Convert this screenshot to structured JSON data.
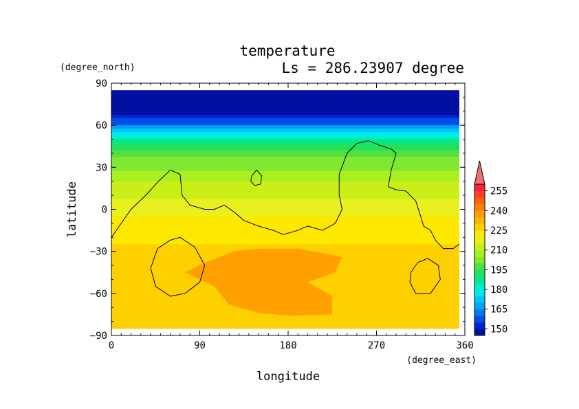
{
  "chart_data": {
    "type": "heatmap",
    "title": "temperature",
    "subtitle": "Ls = 286.23907 degree",
    "xlabel": "longitude",
    "ylabel": "latitude",
    "x_units": "(degree_east)",
    "y_units": "(degree_north)",
    "xlim": [
      0,
      360
    ],
    "ylim": [
      -90,
      90
    ],
    "data_lat_range": [
      -85,
      85
    ],
    "x_ticks": [
      0,
      90,
      180,
      270,
      360
    ],
    "y_ticks": [
      90,
      60,
      30,
      0,
      -30,
      -60,
      -90
    ],
    "x_tick_labels": [
      "0",
      "90",
      "180",
      "270",
      "360"
    ],
    "y_tick_labels": [
      "90",
      "60",
      "30",
      "0",
      "−30",
      "−60",
      "−90"
    ],
    "colorbar": {
      "levels": [
        145,
        150,
        155,
        160,
        165,
        170,
        175,
        180,
        185,
        190,
        195,
        200,
        205,
        210,
        215,
        220,
        225,
        230,
        235,
        240,
        245,
        250,
        255,
        260
      ],
      "colors": [
        "#0010a0",
        "#0022d0",
        "#0050e8",
        "#0078f0",
        "#00a0f8",
        "#00c8f8",
        "#00e8f0",
        "#00f0c0",
        "#00e890",
        "#20e060",
        "#50e040",
        "#80e830",
        "#a8f020",
        "#c8f018",
        "#e8f020",
        "#ffe800",
        "#ffd000",
        "#ffb800",
        "#ffa000",
        "#ff8000",
        "#ff6000",
        "#ff4020",
        "#ff2040"
      ],
      "tick_values": [
        150,
        165,
        180,
        195,
        210,
        225,
        240,
        255
      ],
      "tick_labels": [
        "150",
        "165",
        "180",
        "195",
        "210",
        "225",
        "240",
        "255"
      ],
      "overflow_color": "#f07070"
    },
    "temperature_profile_by_latitude": [
      {
        "lat": 85,
        "value": 146
      },
      {
        "lat": 70,
        "value": 148
      },
      {
        "lat": 62,
        "value": 157
      },
      {
        "lat": 55,
        "value": 176
      },
      {
        "lat": 45,
        "value": 193
      },
      {
        "lat": 35,
        "value": 201
      },
      {
        "lat": 25,
        "value": 207
      },
      {
        "lat": 15,
        "value": 212
      },
      {
        "lat": 5,
        "value": 216
      },
      {
        "lat": -5,
        "value": 220
      },
      {
        "lat": -15,
        "value": 223
      },
      {
        "lat": -25,
        "value": 225
      },
      {
        "lat": -35,
        "value": 228
      },
      {
        "lat": -45,
        "value": 229
      },
      {
        "lat": -55,
        "value": 230
      },
      {
        "lat": -65,
        "value": 229
      },
      {
        "lat": -75,
        "value": 227
      },
      {
        "lat": -85,
        "value": 226
      }
    ],
    "warm_region": {
      "value": 238,
      "outline": [
        [
          75,
          -45
        ],
        [
          95,
          -38
        ],
        [
          125,
          -30
        ],
        [
          150,
          -28
        ],
        [
          190,
          -28
        ],
        [
          235,
          -34
        ],
        [
          228,
          -45
        ],
        [
          200,
          -52
        ],
        [
          225,
          -62
        ],
        [
          225,
          -75
        ],
        [
          185,
          -76
        ],
        [
          150,
          -74
        ],
        [
          120,
          -68
        ],
        [
          105,
          -55
        ],
        [
          90,
          -50
        ]
      ]
    },
    "topography_contours": [
      [
        [
          0,
          -20
        ],
        [
          10,
          -10
        ],
        [
          20,
          0
        ],
        [
          35,
          10
        ],
        [
          48,
          20
        ],
        [
          60,
          28
        ],
        [
          70,
          25
        ],
        [
          72,
          10
        ],
        [
          80,
          3
        ],
        [
          95,
          0
        ],
        [
          105,
          0
        ],
        [
          115,
          3
        ],
        [
          125,
          -2
        ],
        [
          135,
          -8
        ],
        [
          150,
          -12
        ],
        [
          165,
          -15
        ],
        [
          175,
          -18
        ],
        [
          190,
          -15
        ],
        [
          200,
          -12
        ],
        [
          215,
          -15
        ],
        [
          228,
          -10
        ],
        [
          235,
          0
        ],
        [
          232,
          10
        ],
        [
          232,
          25
        ],
        [
          240,
          40
        ],
        [
          250,
          47
        ],
        [
          262,
          49
        ],
        [
          272,
          46
        ],
        [
          285,
          43
        ],
        [
          290,
          40
        ],
        [
          285,
          28
        ],
        [
          282,
          16
        ],
        [
          290,
          14
        ],
        [
          300,
          13
        ],
        [
          310,
          6
        ],
        [
          315,
          -5
        ],
        [
          318,
          -12
        ],
        [
          325,
          -15
        ],
        [
          330,
          -22
        ],
        [
          338,
          -28
        ],
        [
          348,
          -28
        ],
        [
          360,
          -22
        ]
      ],
      [
        [
          143,
          24
        ],
        [
          148,
          28
        ],
        [
          153,
          24
        ],
        [
          152,
          18
        ],
        [
          146,
          17
        ],
        [
          142,
          20
        ],
        [
          143,
          24
        ]
      ],
      [
        [
          40,
          -42
        ],
        [
          47,
          -28
        ],
        [
          60,
          -22
        ],
        [
          70,
          -20
        ],
        [
          85,
          -27
        ],
        [
          95,
          -40
        ],
        [
          90,
          -52
        ],
        [
          75,
          -60
        ],
        [
          60,
          -62
        ],
        [
          45,
          -55
        ],
        [
          40,
          -42
        ]
      ],
      [
        [
          305,
          -45
        ],
        [
          312,
          -38
        ],
        [
          322,
          -35
        ],
        [
          333,
          -40
        ],
        [
          335,
          -50
        ],
        [
          325,
          -60
        ],
        [
          310,
          -60
        ],
        [
          304,
          -52
        ],
        [
          305,
          -45
        ]
      ]
    ]
  }
}
